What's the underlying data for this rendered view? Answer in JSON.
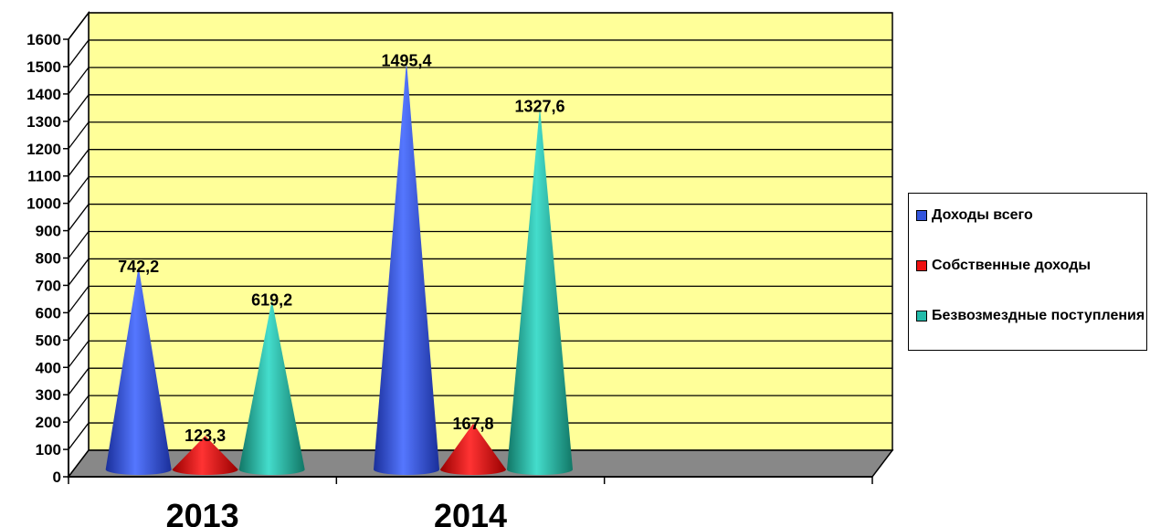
{
  "chart_data": {
    "type": "bar",
    "subtype": "3d-cone",
    "categories": [
      "2013",
      "2014"
    ],
    "series": [
      {
        "name": "Доходы всего",
        "values": [
          742.2,
          1495.4
        ],
        "labels": [
          "742,2",
          "1495,4"
        ],
        "color": "#3355dd"
      },
      {
        "name": "Собственные доходы",
        "values": [
          123.3,
          167.8
        ],
        "labels": [
          "123,3",
          "167,8"
        ],
        "color": "#ee1111"
      },
      {
        "name": "Безвозмездные поступления",
        "values": [
          619.2,
          1327.6
        ],
        "labels": [
          "619,2",
          "1327,6"
        ],
        "color": "#22bbaa"
      }
    ],
    "ylim": [
      0,
      1600
    ],
    "yticks": [
      "0",
      "100",
      "200",
      "300",
      "400",
      "500",
      "600",
      "700",
      "800",
      "900",
      "1000",
      "1100",
      "1200",
      "1300",
      "1400",
      "1500",
      "1600"
    ],
    "grid": true,
    "wall_color": "#ffff99",
    "floor_color": "#888888",
    "legend_position": "right"
  }
}
